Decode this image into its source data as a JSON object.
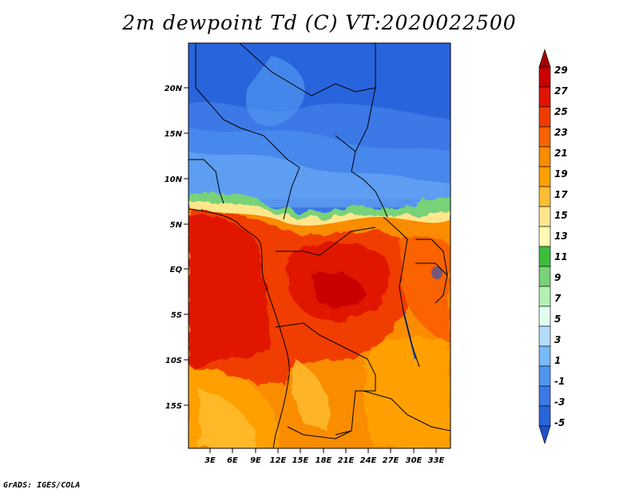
{
  "title": "2m dewpoint Td (C) VT:2020022500",
  "credit": "GrADS: IGES/COLA",
  "lat_labels": [
    "20N",
    "15N",
    "10N",
    "5N",
    "EQ",
    "5S",
    "10S",
    "15S"
  ],
  "lon_labels": [
    "3E",
    "6E",
    "9E",
    "12E",
    "15E",
    "18E",
    "21E",
    "24E",
    "27E",
    "30E",
    "33E"
  ],
  "colorbar": {
    "labels": [
      "29",
      "27",
      "25",
      "23",
      "21",
      "19",
      "17",
      "15",
      "13",
      "11",
      "9",
      "7",
      "5",
      "3",
      "1",
      "-1",
      "-3",
      "-5"
    ],
    "colors": [
      "#a50000",
      "#c80000",
      "#e11400",
      "#f03c00",
      "#fa6400",
      "#fa8c00",
      "#ffa000",
      "#ffbe32",
      "#ffe68c",
      "#fffab4",
      "#3cbe3c",
      "#78d278",
      "#b4f0b4",
      "#e1fff0",
      "#b4dcff",
      "#78b9fa",
      "#5096f0",
      "#3c78e6",
      "#2864dc",
      "#1e50c8"
    ]
  }
}
